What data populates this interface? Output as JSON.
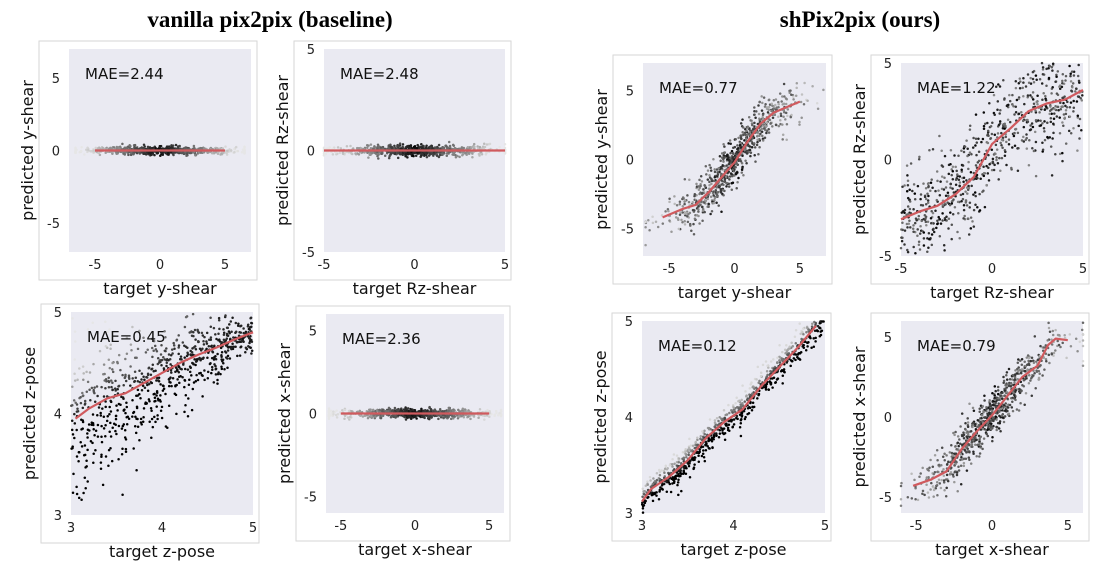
{
  "groups": [
    {
      "title": "vanilla pix2pix (baseline)"
    },
    {
      "title": "shPix2pix (ours)"
    }
  ],
  "colors": {
    "plot_background": "#eaeaf2",
    "trend_line": "#d05a5e",
    "points": "#000000"
  },
  "chart_data": [
    {
      "type": "scatter",
      "group": 0,
      "annotation": "MAE=2.44",
      "xlabel": "target y-shear",
      "ylabel": "predicted y-shear",
      "xlim": [
        -7,
        7
      ],
      "ylim": [
        -7,
        7
      ],
      "xticks": [
        -5,
        0,
        5
      ],
      "yticks": [
        -5,
        0,
        5
      ],
      "grid": false,
      "trend": [
        [
          -5,
          0
        ],
        [
          0,
          0
        ],
        [
          5,
          0
        ]
      ]
    },
    {
      "type": "scatter",
      "group": 0,
      "annotation": "MAE=2.48",
      "xlabel": "target Rz-shear",
      "ylabel": "predicted Rz-shear",
      "xlim": [
        -5,
        5
      ],
      "ylim": [
        -5,
        5
      ],
      "xticks": [
        -5,
        0,
        5
      ],
      "yticks": [
        -5,
        0,
        5
      ],
      "grid": false,
      "trend": [
        [
          -5,
          0
        ],
        [
          0,
          0
        ],
        [
          5,
          0
        ]
      ]
    },
    {
      "type": "scatter",
      "group": 0,
      "annotation": "MAE=0.45",
      "xlabel": "target z-pose",
      "ylabel": "predicted z-pose",
      "xlim": [
        3,
        5
      ],
      "ylim": [
        3,
        5
      ],
      "xticks": [
        3,
        4,
        5
      ],
      "yticks": [
        3,
        4,
        5
      ],
      "grid": false,
      "trend": [
        [
          3.05,
          3.95
        ],
        [
          3.2,
          4.05
        ],
        [
          3.4,
          4.15
        ],
        [
          3.6,
          4.2
        ],
        [
          3.8,
          4.3
        ],
        [
          4.0,
          4.4
        ],
        [
          4.2,
          4.5
        ],
        [
          4.4,
          4.58
        ],
        [
          4.6,
          4.65
        ],
        [
          4.8,
          4.73
        ],
        [
          5.0,
          4.8
        ]
      ]
    },
    {
      "type": "scatter",
      "group": 0,
      "annotation": "MAE=2.36",
      "xlabel": "target x-shear",
      "ylabel": "predicted x-shear",
      "xlim": [
        -6,
        6
      ],
      "ylim": [
        -6,
        6
      ],
      "xticks": [
        -5,
        0,
        5
      ],
      "yticks": [
        -5,
        0,
        5
      ],
      "grid": false,
      "trend": [
        [
          -5,
          0
        ],
        [
          0,
          0
        ],
        [
          5,
          0
        ]
      ]
    },
    {
      "type": "scatter",
      "group": 1,
      "annotation": "MAE=0.77",
      "xlabel": "target y-shear",
      "ylabel": "predicted y-shear",
      "xlim": [
        -7,
        7
      ],
      "ylim": [
        -7,
        7
      ],
      "xticks": [
        -5,
        0,
        5
      ],
      "yticks": [
        -5,
        0,
        5
      ],
      "grid": false,
      "trend": [
        [
          -5.5,
          -4.2
        ],
        [
          -4,
          -3.6
        ],
        [
          -3,
          -3.3
        ],
        [
          -2,
          -2.4
        ],
        [
          -1,
          -1.3
        ],
        [
          0,
          -0.2
        ],
        [
          1,
          1.3
        ],
        [
          2,
          2.6
        ],
        [
          3,
          3.4
        ],
        [
          4,
          3.8
        ],
        [
          5,
          4.2
        ]
      ]
    },
    {
      "type": "scatter",
      "group": 1,
      "annotation": "MAE=1.22",
      "xlabel": "target Rz-shear",
      "ylabel": "predicted Rz-shear",
      "xlim": [
        -5,
        5
      ],
      "ylim": [
        -5,
        5
      ],
      "xticks": [
        -5,
        0,
        5
      ],
      "yticks": [
        -5,
        0,
        5
      ],
      "grid": false,
      "trend": [
        [
          -5,
          -3.1
        ],
        [
          -4,
          -2.7
        ],
        [
          -3,
          -2.4
        ],
        [
          -2,
          -1.8
        ],
        [
          -1,
          -0.9
        ],
        [
          0,
          0.8
        ],
        [
          1,
          1.6
        ],
        [
          2,
          2.5
        ],
        [
          3,
          2.9
        ],
        [
          4,
          3.1
        ],
        [
          5,
          3.6
        ]
      ]
    },
    {
      "type": "scatter",
      "group": 1,
      "annotation": "MAE=0.12",
      "xlabel": "target z-pose",
      "ylabel": "predicted z-pose",
      "xlim": [
        3,
        5
      ],
      "ylim": [
        3,
        5
      ],
      "xticks": [
        3,
        4,
        5
      ],
      "yticks": [
        3,
        4,
        5
      ],
      "grid": false,
      "trend": [
        [
          3.0,
          3.12
        ],
        [
          3.1,
          3.25
        ],
        [
          3.3,
          3.38
        ],
        [
          3.5,
          3.55
        ],
        [
          3.7,
          3.78
        ],
        [
          3.9,
          3.95
        ],
        [
          4.1,
          4.08
        ],
        [
          4.3,
          4.32
        ],
        [
          4.5,
          4.52
        ],
        [
          4.7,
          4.72
        ],
        [
          4.9,
          4.95
        ]
      ]
    },
    {
      "type": "scatter",
      "group": 1,
      "annotation": "MAE=0.79",
      "xlabel": "target x-shear",
      "ylabel": "predicted x-shear",
      "xlim": [
        -6,
        6
      ],
      "ylim": [
        -6,
        6
      ],
      "xticks": [
        -5,
        0,
        5
      ],
      "yticks": [
        -5,
        0,
        5
      ],
      "grid": false,
      "trend": [
        [
          -5.2,
          -4.3
        ],
        [
          -4,
          -3.9
        ],
        [
          -3,
          -3.4
        ],
        [
          -2,
          -2.0
        ],
        [
          -1,
          -0.9
        ],
        [
          0,
          0.1
        ],
        [
          1,
          1.3
        ],
        [
          2,
          2.5
        ],
        [
          3,
          3.2
        ],
        [
          3.7,
          4.5
        ],
        [
          4.2,
          4.9
        ],
        [
          5,
          4.8
        ]
      ]
    }
  ]
}
